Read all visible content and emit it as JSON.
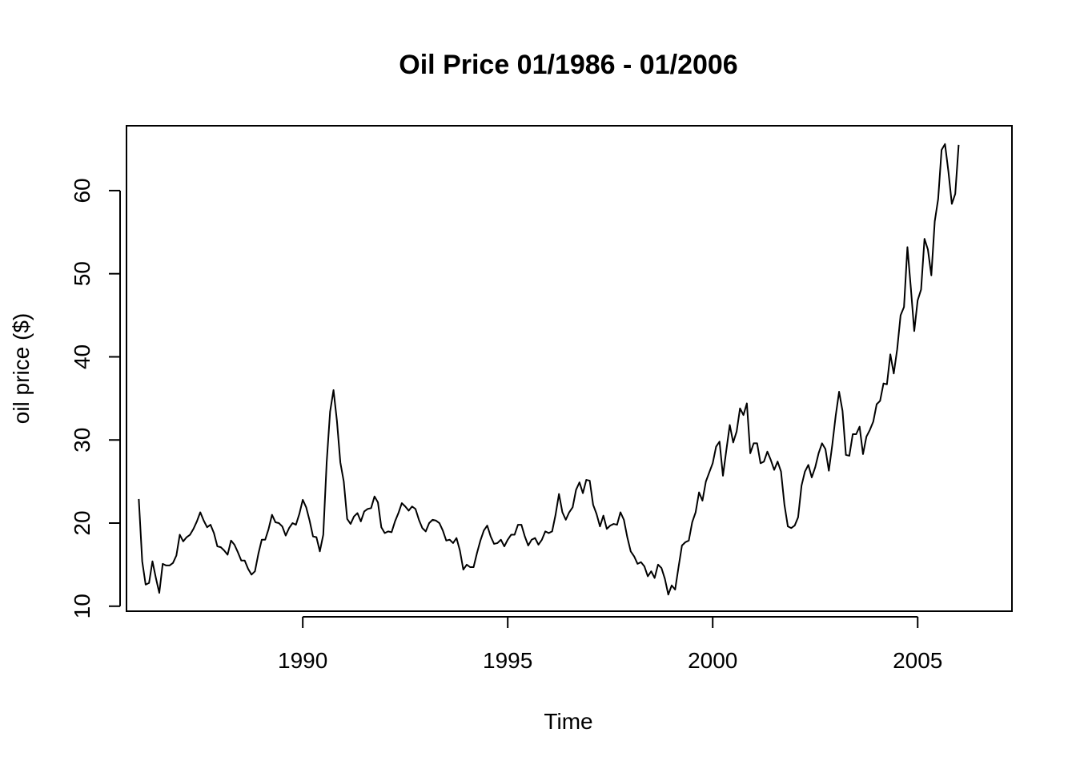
{
  "chart_data": {
    "type": "line",
    "title": "Oil Price 01/1986 - 01/2006",
    "xlabel": "Time",
    "ylabel": "oil price ($)",
    "xlim": [
      1985.7,
      2007.3
    ],
    "ylim": [
      9.4,
      67.8
    ],
    "xticks": [
      1990,
      1995,
      2000,
      2005
    ],
    "yticks": [
      10,
      20,
      30,
      40,
      50,
      60
    ],
    "grid": false,
    "legend": "none",
    "line_color": "#000000",
    "x_start": 1986.0,
    "x_step": 0.0833333,
    "series": [
      {
        "values": [
          22.9,
          15.4,
          12.6,
          12.8,
          15.4,
          13.4,
          11.6,
          15.1,
          14.9,
          14.9,
          15.2,
          16.1,
          18.6,
          17.8,
          18.3,
          18.6,
          19.3,
          20.2,
          21.3,
          20.3,
          19.5,
          19.8,
          18.8,
          17.2,
          17.1,
          16.7,
          16.2,
          17.9,
          17.4,
          16.5,
          15.5,
          15.5,
          14.5,
          13.8,
          14.2,
          16.3,
          18.0,
          18.0,
          19.3,
          21.0,
          20.1,
          20.0,
          19.6,
          18.5,
          19.4,
          20.0,
          19.8,
          21.1,
          22.8,
          21.9,
          20.3,
          18.4,
          18.3,
          16.6,
          18.6,
          27.3,
          33.4,
          36.0,
          32.3,
          27.3,
          25.0,
          20.5,
          19.9,
          20.8,
          21.2,
          20.2,
          21.4,
          21.7,
          21.8,
          23.2,
          22.5,
          19.5,
          18.8,
          19.0,
          18.9,
          20.2,
          21.2,
          22.4,
          22.0,
          21.5,
          22.0,
          21.7,
          20.4,
          19.4,
          19.0,
          20.0,
          20.4,
          20.3,
          20.0,
          19.1,
          17.9,
          18.0,
          17.6,
          18.2,
          16.7,
          14.4,
          15.0,
          14.7,
          14.7,
          16.4,
          17.9,
          19.1,
          19.7,
          18.4,
          17.5,
          17.6,
          18.0,
          17.2,
          18.0,
          18.6,
          18.6,
          19.8,
          19.8,
          18.4,
          17.3,
          18.0,
          18.2,
          17.4,
          18.0,
          19.0,
          18.8,
          19.0,
          21.0,
          23.5,
          21.3,
          20.4,
          21.3,
          21.9,
          24.0,
          24.9,
          23.6,
          25.2,
          25.1,
          22.2,
          21.1,
          19.6,
          20.9,
          19.3,
          19.7,
          19.9,
          19.8,
          21.3,
          20.4,
          18.3,
          16.6,
          16.0,
          15.1,
          15.3,
          14.8,
          13.6,
          14.2,
          13.4,
          15.0,
          14.6,
          13.3,
          11.4,
          12.5,
          12.0,
          14.7,
          17.3,
          17.7,
          17.9,
          20.1,
          21.3,
          23.7,
          22.7,
          25.0,
          26.1,
          27.2,
          29.2,
          29.8,
          25.7,
          28.8,
          31.8,
          29.7,
          31.0,
          33.8,
          33.0,
          34.4,
          28.4,
          29.6,
          29.6,
          27.2,
          27.4,
          28.6,
          27.6,
          26.4,
          27.4,
          26.2,
          22.2,
          19.6,
          19.4,
          19.7,
          20.7,
          24.5,
          26.2,
          27.0,
          25.5,
          26.7,
          28.4,
          29.6,
          28.9,
          26.3,
          29.4,
          32.9,
          35.8,
          33.5,
          28.2,
          28.1,
          30.7,
          30.7,
          31.6,
          28.3,
          30.4,
          31.2,
          32.2,
          34.3,
          34.7,
          36.8,
          36.7,
          40.3,
          38.0,
          40.9,
          45.0,
          46.0,
          53.2,
          48.3,
          43.1,
          46.8,
          48.1,
          54.2,
          52.9,
          49.8,
          56.3,
          59.0,
          64.9,
          65.6,
          62.3,
          58.4,
          59.6,
          65.5
        ]
      }
    ]
  }
}
